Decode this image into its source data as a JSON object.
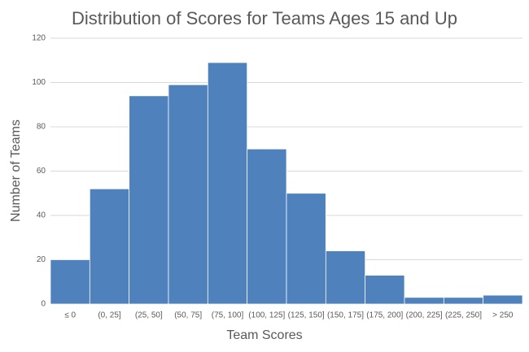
{
  "chart_data": {
    "type": "bar",
    "title": "Distribution of Scores for Teams Ages 15 and Up",
    "x_label": "Team Scores",
    "y_label": "Number of Teams",
    "categories": [
      "≤ 0",
      "(0, 25]",
      "(25, 50]",
      "(50, 75]",
      "(75, 100]",
      "(100, 125]",
      "(125, 150]",
      "(150, 175]",
      "(175, 200]",
      "(200, 225]",
      "(225, 250]",
      "> 250"
    ],
    "values": [
      20,
      52,
      94,
      99,
      109,
      70,
      50,
      24,
      13,
      3,
      3,
      4
    ],
    "color": "#4f81bd",
    "ylim": [
      0,
      120
    ],
    "yticks": [
      0,
      20,
      40,
      60,
      80,
      100,
      120
    ],
    "grid": true
  }
}
